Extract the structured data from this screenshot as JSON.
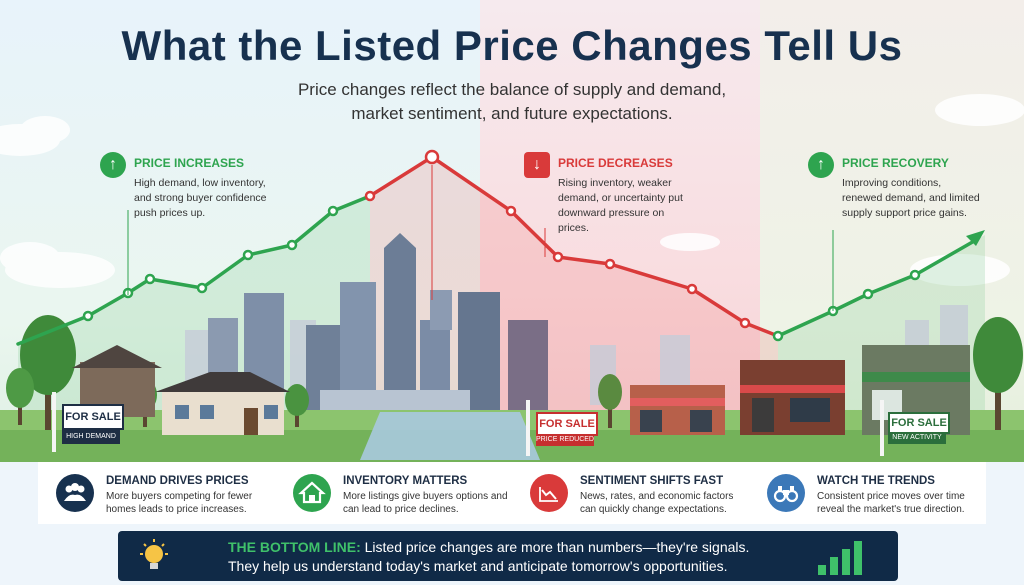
{
  "title": "What the Listed Price Changes Tell Us",
  "subtitle": {
    "line1": "Price changes reflect the balance of supply and demand,",
    "line2": "market sentiment, and future expectations."
  },
  "callouts": [
    {
      "heading": "PRICE INCREASES",
      "body": "High demand, low inventory, and strong buyer confidence push prices up.",
      "color": "#2ea44f",
      "icon": "arrow-up-icon"
    },
    {
      "heading": "PRICE DECREASES",
      "body": "Rising inventory, weaker demand, or uncertainty put downward pressure on prices.",
      "color": "#d93a3a",
      "icon": "arrow-down-icon"
    },
    {
      "heading": "PRICE RECOVERY",
      "body": "Improving conditions, renewed demand, and limited supply support price gains.",
      "color": "#2ea44f",
      "icon": "arrow-up-icon"
    }
  ],
  "signs": [
    {
      "main": "FOR SALE",
      "sub": "HIGH DEMAND"
    },
    {
      "main": "FOR SALE",
      "sub": "PRICE REDUCED"
    },
    {
      "main": "FOR SALE",
      "sub": "NEW ACTIVITY"
    }
  ],
  "cards": [
    {
      "heading": "DEMAND DRIVES PRICES",
      "body": "More buyers competing for fewer homes leads to price increases.",
      "icon": "people-icon",
      "color": "#17314f"
    },
    {
      "heading": "INVENTORY MATTERS",
      "body": "More listings give buyers options and can lead to price declines.",
      "icon": "house-icon",
      "color": "#2ea44f"
    },
    {
      "heading": "SENTIMENT SHIFTS FAST",
      "body": "News, rates, and economic factors can quickly change expectations.",
      "icon": "chart-down-icon",
      "color": "#d93a3a"
    },
    {
      "heading": "WATCH THE TRENDS",
      "body": "Consistent price moves over time reveal the market's true direction.",
      "icon": "binoculars-icon",
      "color": "#3b78b8"
    }
  ],
  "bottom_line": {
    "label": "THE BOTTOM LINE:",
    "line1": "Listed price changes are more than numbers—they're signals.",
    "line2": "They help us understand today's market and anticipate tomorrow's opportunities."
  }
}
